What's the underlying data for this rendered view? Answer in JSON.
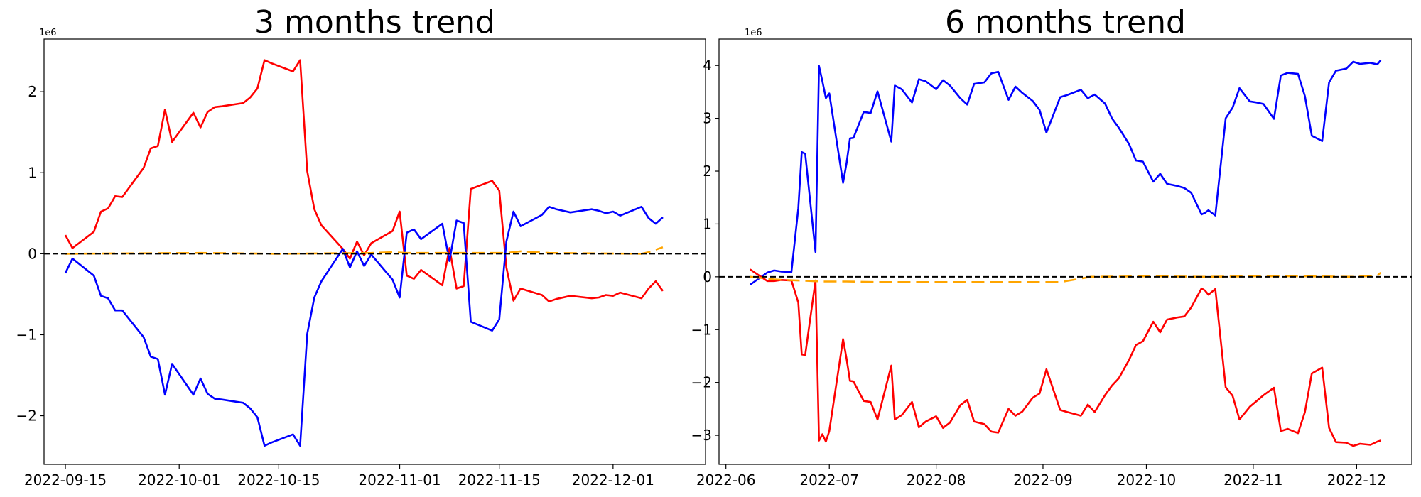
{
  "chart_data": [
    {
      "type": "line",
      "title": "3 months trend",
      "xlabel": "",
      "ylabel": "",
      "offset_text": "1e6",
      "x_ticks": [
        "2022-09-15",
        "2022-10-01",
        "2022-10-15",
        "2022-11-01",
        "2022-11-15",
        "2022-12-01"
      ],
      "y_ticks": [
        -2,
        -1,
        0,
        1,
        2
      ],
      "y_tick_labels": [
        "−2",
        "−1",
        "0",
        "1",
        "2"
      ],
      "xlim": [
        "2022-09-12",
        "2022-12-14"
      ],
      "ylim": [
        -2.6,
        2.65
      ],
      "grid": false,
      "reference_line": {
        "y": 0,
        "style": "dashed",
        "color": "#000000"
      },
      "series": [
        {
          "color": "#ff0000",
          "dates": [
            "2022-09-15",
            "2022-09-16",
            "2022-09-19",
            "2022-09-20",
            "2022-09-21",
            "2022-09-22",
            "2022-09-23",
            "2022-09-26",
            "2022-09-27",
            "2022-09-28",
            "2022-09-29",
            "2022-09-30",
            "2022-10-03",
            "2022-10-04",
            "2022-10-05",
            "2022-10-06",
            "2022-10-07",
            "2022-10-10",
            "2022-10-11",
            "2022-10-12",
            "2022-10-13",
            "2022-10-14",
            "2022-10-17",
            "2022-10-18",
            "2022-10-19",
            "2022-10-20",
            "2022-10-21",
            "2022-10-24",
            "2022-10-25",
            "2022-10-26",
            "2022-10-27",
            "2022-10-28",
            "2022-10-31",
            "2022-11-01",
            "2022-11-02",
            "2022-11-03",
            "2022-11-04",
            "2022-11-07",
            "2022-11-08",
            "2022-11-09",
            "2022-11-10",
            "2022-11-11",
            "2022-11-14",
            "2022-11-15",
            "2022-11-16",
            "2022-11-17",
            "2022-11-18",
            "2022-11-21",
            "2022-11-22",
            "2022-11-23",
            "2022-11-25",
            "2022-11-28",
            "2022-11-29",
            "2022-11-30",
            "2022-12-01",
            "2022-12-02",
            "2022-12-05",
            "2022-12-06",
            "2022-12-07",
            "2022-12-08"
          ],
          "values": [
            0.23,
            0.07,
            0.27,
            0.52,
            0.56,
            0.71,
            0.7,
            1.06,
            1.3,
            1.33,
            1.78,
            1.38,
            1.74,
            1.56,
            1.75,
            1.81,
            1.82,
            1.86,
            1.93,
            2.04,
            2.39,
            2.35,
            2.25,
            2.39,
            1.02,
            0.55,
            0.35,
            0.06,
            -0.06,
            0.15,
            -0.02,
            0.13,
            0.28,
            0.52,
            -0.27,
            -0.31,
            -0.2,
            -0.39,
            0.07,
            -0.43,
            -0.4,
            0.8,
            0.9,
            0.78,
            -0.17,
            -0.58,
            -0.43,
            -0.51,
            -0.59,
            -0.56,
            -0.52,
            -0.55,
            -0.54,
            -0.51,
            -0.52,
            -0.48,
            -0.55,
            -0.43,
            -0.34,
            -0.46
          ]
        },
        {
          "color": "#0000ff",
          "dates": [
            "2022-09-15",
            "2022-09-16",
            "2022-09-19",
            "2022-09-20",
            "2022-09-21",
            "2022-09-22",
            "2022-09-23",
            "2022-09-26",
            "2022-09-27",
            "2022-09-28",
            "2022-09-29",
            "2022-09-30",
            "2022-10-03",
            "2022-10-04",
            "2022-10-05",
            "2022-10-06",
            "2022-10-07",
            "2022-10-10",
            "2022-10-11",
            "2022-10-12",
            "2022-10-13",
            "2022-10-14",
            "2022-10-17",
            "2022-10-18",
            "2022-10-19",
            "2022-10-20",
            "2022-10-21",
            "2022-10-24",
            "2022-10-25",
            "2022-10-26",
            "2022-10-27",
            "2022-10-28",
            "2022-10-31",
            "2022-11-01",
            "2022-11-02",
            "2022-11-03",
            "2022-11-04",
            "2022-11-07",
            "2022-11-08",
            "2022-11-09",
            "2022-11-10",
            "2022-11-11",
            "2022-11-14",
            "2022-11-15",
            "2022-11-16",
            "2022-11-17",
            "2022-11-18",
            "2022-11-21",
            "2022-11-22",
            "2022-11-23",
            "2022-11-25",
            "2022-11-28",
            "2022-11-29",
            "2022-11-30",
            "2022-12-01",
            "2022-12-02",
            "2022-12-05",
            "2022-12-06",
            "2022-12-07",
            "2022-12-08"
          ],
          "values": [
            -0.24,
            -0.06,
            -0.27,
            -0.52,
            -0.55,
            -0.7,
            -0.7,
            -1.03,
            -1.27,
            -1.3,
            -1.74,
            -1.36,
            -1.74,
            -1.54,
            -1.73,
            -1.79,
            -1.8,
            -1.84,
            -1.91,
            -2.02,
            -2.37,
            -2.33,
            -2.23,
            -2.37,
            -0.99,
            -0.54,
            -0.34,
            0.06,
            -0.17,
            0.03,
            -0.15,
            -0.01,
            -0.32,
            -0.54,
            0.26,
            0.3,
            0.18,
            0.37,
            -0.09,
            0.41,
            0.38,
            -0.84,
            -0.95,
            -0.81,
            0.15,
            0.52,
            0.34,
            0.48,
            0.58,
            0.55,
            0.51,
            0.55,
            0.53,
            0.5,
            0.52,
            0.47,
            0.58,
            0.44,
            0.37,
            0.45
          ]
        },
        {
          "color": "#ffa500",
          "style": "dashed",
          "dates": [
            "2022-09-15",
            "2022-10-04",
            "2022-10-15",
            "2022-10-28",
            "2022-10-31",
            "2022-11-02",
            "2022-11-16",
            "2022-11-18",
            "2022-11-22",
            "2022-12-05",
            "2022-12-06",
            "2022-12-07",
            "2022-12-08"
          ],
          "values": [
            0.0,
            0.01,
            0.0,
            0.01,
            0.02,
            0.01,
            0.01,
            0.03,
            0.01,
            0.0,
            0.02,
            0.05,
            0.08
          ]
        }
      ]
    },
    {
      "type": "line",
      "title": "6 months trend",
      "xlabel": "",
      "ylabel": "",
      "offset_text": "1e6",
      "x_ticks": [
        "2022-06",
        "2022-07",
        "2022-08",
        "2022-09",
        "2022-10",
        "2022-11",
        "2022-12"
      ],
      "y_ticks": [
        -3,
        -2,
        -1,
        0,
        1,
        2,
        3,
        4
      ],
      "y_tick_labels": [
        "−3",
        "−2",
        "−1",
        "0",
        "1",
        "2",
        "3",
        "4"
      ],
      "xlim": [
        "2022-05-30",
        "2022-12-17"
      ],
      "ylim": [
        -3.55,
        4.5
      ],
      "grid": false,
      "reference_line": {
        "y": 0,
        "style": "dashed",
        "color": "#000000"
      },
      "series": [
        {
          "color": "#0000ff",
          "dates": [
            "2022-06-08",
            "2022-06-13",
            "2022-06-15",
            "2022-06-17",
            "2022-06-20",
            "2022-06-22",
            "2022-06-23",
            "2022-06-24",
            "2022-06-27",
            "2022-06-28",
            "2022-06-29",
            "2022-06-30",
            "2022-07-01",
            "2022-07-05",
            "2022-07-06",
            "2022-07-07",
            "2022-07-08",
            "2022-07-11",
            "2022-07-13",
            "2022-07-15",
            "2022-07-19",
            "2022-07-20",
            "2022-07-22",
            "2022-07-25",
            "2022-07-27",
            "2022-07-29",
            "2022-08-01",
            "2022-08-03",
            "2022-08-05",
            "2022-08-08",
            "2022-08-10",
            "2022-08-12",
            "2022-08-15",
            "2022-08-17",
            "2022-08-19",
            "2022-08-22",
            "2022-08-24",
            "2022-08-26",
            "2022-08-29",
            "2022-08-31",
            "2022-09-02",
            "2022-09-06",
            "2022-09-08",
            "2022-09-12",
            "2022-09-14",
            "2022-09-16",
            "2022-09-19",
            "2022-09-21",
            "2022-09-23",
            "2022-09-26",
            "2022-09-28",
            "2022-09-30",
            "2022-10-03",
            "2022-10-05",
            "2022-10-07",
            "2022-10-10",
            "2022-10-12",
            "2022-10-14",
            "2022-10-17",
            "2022-10-18",
            "2022-10-19",
            "2022-10-21",
            "2022-10-24",
            "2022-10-26",
            "2022-10-28",
            "2022-10-31",
            "2022-11-02",
            "2022-11-04",
            "2022-11-07",
            "2022-11-09",
            "2022-11-11",
            "2022-11-14",
            "2022-11-16",
            "2022-11-18",
            "2022-11-21",
            "2022-11-23",
            "2022-11-25",
            "2022-11-28",
            "2022-11-30",
            "2022-12-02",
            "2022-12-05",
            "2022-12-07",
            "2022-12-08"
          ],
          "values": [
            -0.15,
            0.08,
            0.12,
            0.1,
            0.09,
            1.3,
            2.36,
            2.33,
            0.47,
            3.99,
            3.7,
            3.38,
            3.47,
            1.78,
            2.15,
            2.62,
            2.63,
            3.12,
            3.1,
            3.51,
            2.56,
            3.62,
            3.55,
            3.3,
            3.74,
            3.7,
            3.55,
            3.72,
            3.62,
            3.38,
            3.26,
            3.65,
            3.68,
            3.85,
            3.88,
            3.35,
            3.6,
            3.48,
            3.33,
            3.16,
            2.73,
            3.4,
            3.44,
            3.54,
            3.38,
            3.45,
            3.28,
            3.0,
            2.82,
            2.51,
            2.2,
            2.18,
            1.8,
            1.95,
            1.76,
            1.72,
            1.68,
            1.59,
            1.18,
            1.21,
            1.26,
            1.16,
            3.0,
            3.2,
            3.57,
            3.32,
            3.3,
            3.27,
            2.99,
            3.81,
            3.86,
            3.84,
            3.42,
            2.67,
            2.57,
            3.68,
            3.9,
            3.94,
            4.07,
            4.03,
            4.05,
            4.02,
            4.1
          ]
        },
        {
          "color": "#ff0000",
          "dates": [
            "2022-06-08",
            "2022-06-13",
            "2022-06-15",
            "2022-06-17",
            "2022-06-20",
            "2022-06-22",
            "2022-06-23",
            "2022-06-24",
            "2022-06-27",
            "2022-06-28",
            "2022-06-29",
            "2022-06-30",
            "2022-07-01",
            "2022-07-05",
            "2022-07-06",
            "2022-07-07",
            "2022-07-08",
            "2022-07-11",
            "2022-07-13",
            "2022-07-15",
            "2022-07-19",
            "2022-07-20",
            "2022-07-22",
            "2022-07-25",
            "2022-07-27",
            "2022-07-29",
            "2022-08-01",
            "2022-08-03",
            "2022-08-05",
            "2022-08-08",
            "2022-08-10",
            "2022-08-12",
            "2022-08-15",
            "2022-08-17",
            "2022-08-19",
            "2022-08-22",
            "2022-08-24",
            "2022-08-26",
            "2022-08-29",
            "2022-08-31",
            "2022-09-02",
            "2022-09-06",
            "2022-09-08",
            "2022-09-12",
            "2022-09-14",
            "2022-09-16",
            "2022-09-19",
            "2022-09-21",
            "2022-09-23",
            "2022-09-26",
            "2022-09-28",
            "2022-09-30",
            "2022-10-03",
            "2022-10-05",
            "2022-10-07",
            "2022-10-10",
            "2022-10-12",
            "2022-10-14",
            "2022-10-17",
            "2022-10-18",
            "2022-10-19",
            "2022-10-21",
            "2022-10-24",
            "2022-10-26",
            "2022-10-28",
            "2022-10-31",
            "2022-11-02",
            "2022-11-04",
            "2022-11-07",
            "2022-11-09",
            "2022-11-11",
            "2022-11-14",
            "2022-11-16",
            "2022-11-18",
            "2022-11-21",
            "2022-11-23",
            "2022-11-25",
            "2022-11-28",
            "2022-11-30",
            "2022-12-02",
            "2022-12-05",
            "2022-12-07",
            "2022-12-08"
          ],
          "values": [
            0.14,
            -0.08,
            -0.08,
            -0.06,
            -0.07,
            -0.49,
            -1.47,
            -1.48,
            -0.07,
            -3.1,
            -2.98,
            -3.12,
            -2.92,
            -1.18,
            -1.55,
            -1.97,
            -1.98,
            -2.35,
            -2.37,
            -2.7,
            -1.68,
            -2.7,
            -2.62,
            -2.37,
            -2.85,
            -2.74,
            -2.64,
            -2.86,
            -2.76,
            -2.43,
            -2.33,
            -2.74,
            -2.79,
            -2.93,
            -2.95,
            -2.5,
            -2.63,
            -2.55,
            -2.29,
            -2.21,
            -1.75,
            -2.52,
            -2.56,
            -2.63,
            -2.42,
            -2.56,
            -2.24,
            -2.06,
            -1.92,
            -1.57,
            -1.29,
            -1.22,
            -0.85,
            -1.05,
            -0.81,
            -0.77,
            -0.75,
            -0.58,
            -0.22,
            -0.26,
            -0.34,
            -0.23,
            -2.09,
            -2.25,
            -2.7,
            -2.46,
            -2.35,
            -2.24,
            -2.1,
            -2.92,
            -2.88,
            -2.96,
            -2.56,
            -1.83,
            -1.72,
            -2.86,
            -3.13,
            -3.14,
            -3.2,
            -3.16,
            -3.18,
            -3.12,
            -3.1
          ]
        },
        {
          "color": "#ffa500",
          "style": "dashed",
          "dates": [
            "2022-06-08",
            "2022-06-15",
            "2022-06-22",
            "2022-06-29",
            "2022-07-06",
            "2022-07-15",
            "2022-07-22",
            "2022-07-29",
            "2022-08-17",
            "2022-08-24",
            "2022-08-31",
            "2022-09-06",
            "2022-09-15",
            "2022-10-03",
            "2022-10-17",
            "2022-11-02",
            "2022-11-16",
            "2022-11-30",
            "2022-12-07",
            "2022-12-08"
          ],
          "values": [
            0.0,
            -0.05,
            -0.07,
            -0.09,
            -0.09,
            -0.1,
            -0.1,
            -0.1,
            -0.1,
            -0.1,
            -0.1,
            -0.1,
            0.0,
            0.01,
            0.0,
            0.01,
            0.01,
            0.0,
            0.02,
            0.08
          ]
        }
      ]
    }
  ]
}
